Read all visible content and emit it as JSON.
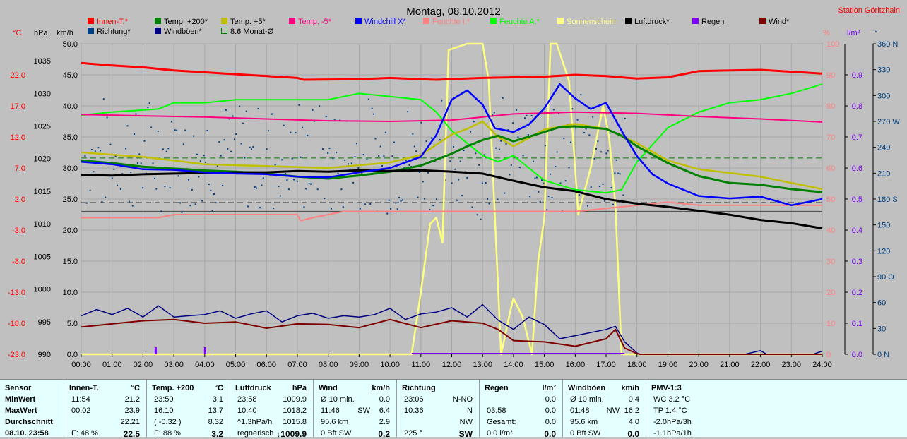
{
  "title": "Montag, 08.10.2012",
  "station": "Station Göritzhain",
  "axis_units": {
    "temp": "°C",
    "hpa": "hPa",
    "kmh": "km/h",
    "pct": "%",
    "rain": "l/m²",
    "dir": "°"
  },
  "legend": [
    {
      "label": "Innen-T.*",
      "color": "#ff0000"
    },
    {
      "label": "Temp. +200*",
      "color": "#008000"
    },
    {
      "label": "Temp. +5*",
      "color": "#c0c000"
    },
    {
      "label": "Temp. -5*",
      "color": "#ff0080"
    },
    {
      "label": "Windchill X*",
      "color": "#0000ff"
    },
    {
      "label": "Feuchte I.*",
      "color": "#ff8080"
    },
    {
      "label": "Feuchte A.*",
      "color": "#00ff00"
    },
    {
      "label": "Sonnenschein",
      "color": "#ffff80"
    },
    {
      "label": "Luftdruck*",
      "color": "#000000"
    },
    {
      "label": "Regen",
      "color": "#8000ff"
    },
    {
      "label": "Wind*",
      "color": "#800000"
    },
    {
      "label": "Richtung*",
      "color": "#004080"
    },
    {
      "label": "Windböen*",
      "color": "#000080"
    },
    {
      "label": "8.6 Monat-Ø",
      "color": "#008000"
    }
  ],
  "chart_data": {
    "type": "line",
    "x_ticks": [
      "00:00",
      "01:00",
      "02:00",
      "03:00",
      "04:00",
      "05:00",
      "06:00",
      "07:00",
      "08:00",
      "09:00",
      "10:00",
      "11:00",
      "12:00",
      "13:00",
      "14:00",
      "15:00",
      "16:00",
      "17:00",
      "18:00",
      "19:00",
      "20:00",
      "21:00",
      "22:00",
      "23:00",
      "24:00"
    ],
    "temp_ticks": [
      "22.0",
      "17.0",
      "12.0",
      "7.0",
      "2.0",
      "-3.0",
      "-8.0",
      "-13.0",
      "-18.0",
      "-23.0"
    ],
    "hpa_ticks": [
      "1035",
      "1030",
      "1025",
      "1020",
      "1015",
      "1010",
      "1005",
      "1000",
      "995",
      "990"
    ],
    "kmh_ticks": [
      "50.0",
      "45.0",
      "40.0",
      "35.0",
      "30.0",
      "25.0",
      "20.0",
      "15.0",
      "10.0",
      "5.0",
      "0.0"
    ],
    "pct_ticks": [
      "100",
      "90",
      "80",
      "70",
      "60",
      "50",
      "40",
      "30",
      "20",
      "10",
      "0"
    ],
    "rain_ticks": [
      "0.9",
      "0.8",
      "0.7",
      "0.6",
      "0.5",
      "0.4",
      "0.3",
      "0.2",
      "0.1",
      "0.0"
    ],
    "dir_ticks": [
      "360 N",
      "330",
      "300",
      "270 W",
      "240",
      "210",
      "180 S",
      "150",
      "120",
      "90 O",
      "60",
      "30",
      "0 N"
    ],
    "ranges": {
      "temp": [
        -23,
        27
      ],
      "kmh": [
        0,
        50
      ],
      "hpa": [
        990,
        1037.6
      ],
      "pct": [
        0,
        100
      ],
      "dir": [
        0,
        360
      ]
    },
    "monthly_avg_temp": 8.6,
    "series": [
      {
        "name": "Innen-T.*",
        "color": "#ff0000",
        "axis": "temp",
        "x": [
          0,
          1,
          2,
          3,
          5,
          7,
          7.2,
          9,
          10,
          11,
          11.5,
          13,
          15,
          16,
          17,
          18,
          19,
          20,
          22,
          24
        ],
        "y": [
          23.9,
          23.5,
          23.2,
          22.7,
          22.1,
          21.5,
          21.2,
          21.3,
          21.5,
          21.3,
          21.2,
          21.5,
          21.7,
          22.0,
          21.8,
          21.4,
          21.6,
          22.6,
          22.8,
          22.2
        ]
      },
      {
        "name": "Temp. +200*",
        "color": "#008000",
        "axis": "temp",
        "x": [
          0,
          1,
          2,
          3,
          4,
          5,
          6,
          7,
          8,
          9,
          10,
          11,
          12,
          12.5,
          13,
          13.5,
          14,
          15,
          15.5,
          16,
          17,
          17.5,
          18,
          19,
          20,
          21,
          22,
          23,
          24
        ],
        "y": [
          8.2,
          7.8,
          7.2,
          6.9,
          6.6,
          6.4,
          6.1,
          5.6,
          5.3,
          5.8,
          6.4,
          7.4,
          9.3,
          10.5,
          11.5,
          12.2,
          11.3,
          12.8,
          13.6,
          13.7,
          13.3,
          12.2,
          10.5,
          7.8,
          5.7,
          4.6,
          4.3,
          3.6,
          3.1
        ]
      },
      {
        "name": "Temp. +5*",
        "color": "#c0c000",
        "axis": "temp",
        "x": [
          0,
          2,
          4,
          6,
          8,
          10,
          11,
          12,
          12.5,
          13,
          13.5,
          14,
          15,
          16,
          17,
          18,
          19,
          20,
          21,
          22,
          23,
          24
        ],
        "y": [
          9.5,
          8.8,
          7.6,
          7.3,
          7.0,
          7.9,
          9.1,
          12.4,
          13.3,
          14.5,
          12.0,
          10.5,
          13.2,
          14.1,
          13.3,
          11.0,
          8.2,
          6.8,
          6.2,
          5.6,
          4.6,
          3.6
        ]
      },
      {
        "name": "Temp. -5*",
        "color": "#ff0080",
        "axis": "temp",
        "x": [
          0,
          2,
          4,
          6,
          8,
          10,
          12,
          14,
          16,
          18,
          20,
          22,
          24
        ],
        "y": [
          15.6,
          15.4,
          15.2,
          14.9,
          14.6,
          14.5,
          14.7,
          15.7,
          16.0,
          15.8,
          15.3,
          14.9,
          14.4
        ]
      },
      {
        "name": "Windchill X*",
        "color": "#0000ff",
        "axis": "temp",
        "x": [
          0,
          1,
          2,
          3,
          4,
          5,
          6,
          7,
          8,
          9,
          10,
          11,
          11.5,
          12,
          12.5,
          13,
          13.4,
          14,
          14.5,
          15,
          15.5,
          16,
          16.5,
          17,
          17.5,
          18,
          18.5,
          19,
          20,
          21,
          22,
          23,
          24
        ],
        "y": [
          8.0,
          7.6,
          6.8,
          6.7,
          6.3,
          6.1,
          6.0,
          5.6,
          5.5,
          6.3,
          7.0,
          8.8,
          12.3,
          18.0,
          19.5,
          17.2,
          13.4,
          12.8,
          14.0,
          16.6,
          20.5,
          18.2,
          16.5,
          17.5,
          13.0,
          8.9,
          6.0,
          4.5,
          2.5,
          2.1,
          2.4,
          1.0,
          2.0
        ]
      },
      {
        "name": "Feuchte I.*",
        "color": "#ff8080",
        "axis": "pct",
        "x": [
          0,
          2.5,
          3,
          7,
          7.1,
          7.5,
          8.5,
          10,
          14,
          16,
          17,
          18,
          19,
          20,
          22,
          24
        ],
        "y": [
          44,
          44,
          45,
          45,
          43,
          44,
          46,
          46,
          46,
          46,
          47,
          48,
          49,
          48,
          48,
          48
        ]
      },
      {
        "name": "Feuchte A.*",
        "color": "#00ff00",
        "axis": "pct",
        "x": [
          0,
          1,
          2.5,
          3,
          4,
          5,
          6,
          7,
          8,
          9,
          10,
          11,
          11.5,
          12,
          12.5,
          13,
          13.5,
          14,
          14.5,
          15,
          16,
          17,
          17.5,
          18,
          19,
          20,
          21,
          22,
          23,
          24
        ],
        "y": [
          77,
          78,
          79,
          81,
          81,
          82,
          82,
          82,
          82,
          84,
          83,
          82,
          78,
          72,
          68,
          64,
          62,
          64,
          60,
          56,
          53,
          52,
          53,
          62,
          73,
          78,
          81,
          82,
          84,
          87
        ]
      },
      {
        "name": "Sonnenschein",
        "color": "#ffff80",
        "axis": "pct",
        "x": [
          0,
          10.7,
          11,
          11.3,
          11.5,
          11.7,
          11.9,
          12.5,
          13,
          13.2,
          13.6,
          13.9,
          14,
          14.3,
          14.6,
          14.8,
          15,
          15.2,
          15.4,
          15.8,
          16.1,
          16.5,
          16.9,
          17.1,
          17.3,
          17.5,
          24
        ],
        "y": [
          0,
          0,
          20,
          42,
          44,
          36,
          98,
          100,
          100,
          88,
          0,
          14,
          18,
          12,
          0,
          30,
          44,
          100,
          100,
          88,
          45,
          60,
          80,
          70,
          48,
          0,
          0
        ]
      },
      {
        "name": "Luftdruck*",
        "color": "#000000",
        "axis": "hpa",
        "x": [
          0,
          1,
          2,
          3,
          4,
          5,
          6,
          7,
          8,
          9,
          10,
          11,
          12,
          13,
          14,
          15,
          16,
          17,
          18,
          19,
          20,
          21,
          22,
          23,
          24
        ],
        "y": [
          1017.5,
          1017.4,
          1017.6,
          1017.7,
          1017.8,
          1017.9,
          1017.9,
          1018.1,
          1018.0,
          1018.2,
          1018.1,
          1018.2,
          1018.0,
          1017.7,
          1016.6,
          1015.6,
          1015.0,
          1013.8,
          1013.1,
          1012.6,
          1012.0,
          1011.4,
          1010.6,
          1010.1,
          1009.3
        ]
      },
      {
        "name": "Wind*",
        "color": "#800000",
        "axis": "kmh",
        "x": [
          0,
          1,
          2,
          3,
          4,
          5,
          6,
          7,
          8,
          9,
          10,
          11,
          12,
          13,
          13.5,
          14,
          15,
          16,
          17,
          17.3,
          17.6,
          18,
          18.1,
          24
        ],
        "y": [
          4.4,
          4.9,
          5.4,
          5.6,
          5.0,
          5.2,
          4.2,
          4.9,
          4.8,
          4.3,
          5.6,
          4.3,
          5.4,
          5.0,
          4.0,
          2.2,
          2.0,
          1.3,
          2.5,
          4.0,
          1.0,
          0.1,
          0,
          0
        ]
      },
      {
        "name": "Windböen*",
        "color": "#000080",
        "axis": "kmh",
        "x": [
          0,
          0.5,
          1,
          1.5,
          2,
          2.5,
          3,
          3.5,
          4,
          4.5,
          5,
          5.5,
          6,
          6.5,
          7,
          7.5,
          8,
          8.5,
          9,
          9.5,
          10,
          10.5,
          11,
          11.5,
          12,
          12.5,
          13,
          13.5,
          14,
          14.5,
          15,
          15.5,
          16,
          16.5,
          17,
          17.3,
          17.6,
          18,
          18.1,
          21.5,
          22,
          22.2,
          23.7,
          24
        ],
        "y": [
          6.2,
          7.2,
          6.4,
          7.4,
          6.0,
          7.8,
          6.0,
          6.2,
          6.4,
          7.0,
          5.8,
          6.5,
          7.0,
          5.2,
          6.2,
          6.6,
          5.8,
          6.2,
          6.0,
          6.4,
          7.4,
          5.6,
          6.5,
          6.8,
          7.5,
          6.0,
          8.0,
          5.5,
          4.0,
          6.0,
          4.8,
          2.5,
          3.0,
          3.5,
          4.0,
          4.5,
          2.0,
          0.2,
          0,
          0,
          0.6,
          0,
          0,
          0.5
        ]
      },
      {
        "name": "Regen",
        "color": "#8000ff",
        "axis": "rain",
        "x": [
          2.4,
          4.0
        ],
        "y": [
          0.02,
          0.02
        ]
      }
    ],
    "richtung_series": {
      "name": "Richtung*",
      "color": "#004080",
      "axis": "dir",
      "hour_range": [
        0.1,
        17.6
      ],
      "typical_deg": 230,
      "spread_deg": 60
    }
  },
  "table": [
    {
      "title": "Sensor",
      "unit": "",
      "rows": [
        [
          "MinWert",
          "",
          ""
        ],
        [
          "MaxWert",
          "",
          ""
        ],
        [
          "Durchschnitt",
          "",
          ""
        ],
        [
          "08.10. 23:58",
          "",
          ""
        ]
      ]
    },
    {
      "title": "Innen-T.",
      "unit": "°C",
      "rows": [
        [
          "11:54",
          "",
          "21.2"
        ],
        [
          "00:02",
          "",
          "23.9"
        ],
        [
          "",
          "",
          "22.21"
        ],
        [
          "F: 48 %",
          "",
          "22.5"
        ]
      ]
    },
    {
      "title": "Temp. +200",
      "unit": "°C",
      "rows": [
        [
          "23:50",
          "",
          "3.1"
        ],
        [
          "16:10",
          "",
          "13.7"
        ],
        [
          "( -0.32 )",
          "",
          "8.32"
        ],
        [
          "F: 88 %",
          "",
          "3.2"
        ]
      ]
    },
    {
      "title": "Luftdruck",
      "unit": "hPa",
      "rows": [
        [
          "23:58",
          "",
          "1009.9"
        ],
        [
          "10:40",
          "",
          "1018.2"
        ],
        [
          "^1.3hPa/h",
          "",
          "1015.8"
        ],
        [
          "regnerisch",
          "",
          "↓1009.9"
        ]
      ]
    },
    {
      "title": "Wind",
      "unit": "km/h",
      "rows": [
        [
          "Ø 10 min.",
          "",
          "0.0"
        ],
        [
          "11:46",
          "SW",
          "6.4"
        ],
        [
          "95.6 km",
          "",
          "2.9"
        ],
        [
          "0 Bft SW",
          "",
          "0.2"
        ]
      ]
    },
    {
      "title": "Richtung",
      "unit": "",
      "rows": [
        [
          "23:06",
          "",
          "N-NO"
        ],
        [
          "10:36",
          "",
          "N"
        ],
        [
          "",
          "",
          "NW"
        ],
        [
          "225 °",
          "",
          "SW"
        ]
      ]
    },
    {
      "title": "Regen",
      "unit": "l/m²",
      "rows": [
        [
          "",
          "",
          "0.0"
        ],
        [
          "03:58",
          "",
          "0.0"
        ],
        [
          "Gesamt:",
          "",
          "0.0"
        ],
        [
          "0.0 l/m²",
          "",
          "0.0"
        ]
      ]
    },
    {
      "title": "Windböen",
      "unit": "km/h",
      "rows": [
        [
          "Ø 10 min.",
          "",
          "0.4"
        ],
        [
          "01:48",
          "NW",
          "16.2"
        ],
        [
          "95.6 km",
          "",
          "4.0"
        ],
        [
          "0 Bft SW",
          "",
          "0.0"
        ]
      ]
    },
    {
      "title": "PMV-1:3",
      "unit": "",
      "rows": [
        [
          "WC 3.2 °C",
          "",
          ""
        ],
        [
          "TP 1.4 °C",
          "",
          ""
        ],
        [
          "-2.0hPa/3h",
          "",
          ""
        ],
        [
          "-1.1hPa/1h",
          "",
          ""
        ]
      ]
    }
  ]
}
